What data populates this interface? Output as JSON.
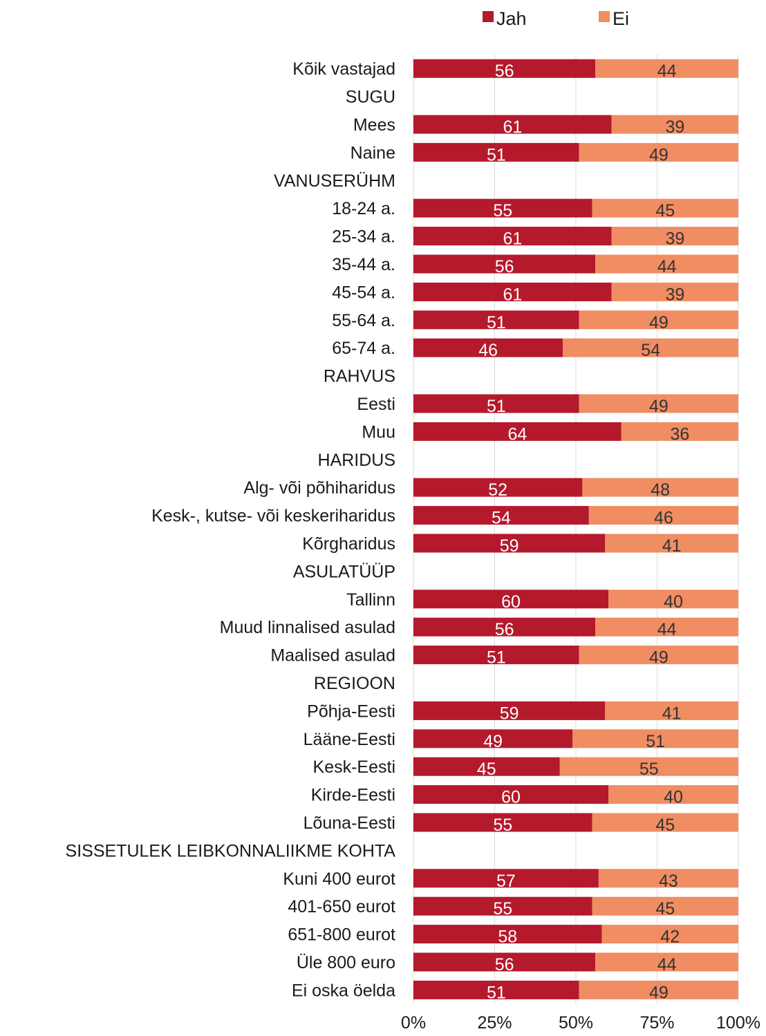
{
  "colors": {
    "jah": "#b5192c",
    "ei": "#f08d63"
  },
  "chart_data": {
    "type": "bar",
    "orientation": "horizontal",
    "stacked": true,
    "legend_position": "top",
    "xlim": [
      0,
      100
    ],
    "xticks": [
      "0%",
      "25%",
      "50%",
      "75%",
      "100%"
    ],
    "grid": true,
    "series": [
      {
        "name": "Jah",
        "color": "#b5192c"
      },
      {
        "name": "Ei",
        "color": "#f08d63"
      }
    ],
    "rows": [
      {
        "label": "Kõik vastajad",
        "jah": 56,
        "ei": 44
      },
      {
        "label": "SUGU",
        "jah": null,
        "ei": null
      },
      {
        "label": "Mees",
        "jah": 61,
        "ei": 39
      },
      {
        "label": "Naine",
        "jah": 51,
        "ei": 49
      },
      {
        "label": "VANUSERÜHM",
        "jah": null,
        "ei": null
      },
      {
        "label": "18-24 a.",
        "jah": 55,
        "ei": 45
      },
      {
        "label": "25-34 a.",
        "jah": 61,
        "ei": 39
      },
      {
        "label": "35-44 a.",
        "jah": 56,
        "ei": 44
      },
      {
        "label": "45-54 a.",
        "jah": 61,
        "ei": 39
      },
      {
        "label": "55-64 a.",
        "jah": 51,
        "ei": 49
      },
      {
        "label": "65-74 a.",
        "jah": 46,
        "ei": 54
      },
      {
        "label": "RAHVUS",
        "jah": null,
        "ei": null
      },
      {
        "label": "Eesti",
        "jah": 51,
        "ei": 49
      },
      {
        "label": "Muu",
        "jah": 64,
        "ei": 36
      },
      {
        "label": "HARIDUS",
        "jah": null,
        "ei": null
      },
      {
        "label": "Alg- või põhiharidus",
        "jah": 52,
        "ei": 48
      },
      {
        "label": "Kesk-, kutse- või keskeriharidus",
        "jah": 54,
        "ei": 46
      },
      {
        "label": "Kõrgharidus",
        "jah": 59,
        "ei": 41
      },
      {
        "label": "ASULATÜÜP",
        "jah": null,
        "ei": null
      },
      {
        "label": "Tallinn",
        "jah": 60,
        "ei": 40
      },
      {
        "label": "Muud linnalised asulad",
        "jah": 56,
        "ei": 44
      },
      {
        "label": "Maalised asulad",
        "jah": 51,
        "ei": 49
      },
      {
        "label": "REGIOON",
        "jah": null,
        "ei": null
      },
      {
        "label": "Põhja-Eesti",
        "jah": 59,
        "ei": 41
      },
      {
        "label": "Lääne-Eesti",
        "jah": 49,
        "ei": 51
      },
      {
        "label": "Kesk-Eesti",
        "jah": 45,
        "ei": 55
      },
      {
        "label": "Kirde-Eesti",
        "jah": 60,
        "ei": 40
      },
      {
        "label": "Lõuna-Eesti",
        "jah": 55,
        "ei": 45
      },
      {
        "label": "SISSETULEK LEIBKONNALIIKME KOHTA",
        "jah": null,
        "ei": null
      },
      {
        "label": "Kuni 400 eurot",
        "jah": 57,
        "ei": 43
      },
      {
        "label": "401-650 eurot",
        "jah": 55,
        "ei": 45
      },
      {
        "label": "651-800 eurot",
        "jah": 58,
        "ei": 42
      },
      {
        "label": "Üle 800 euro",
        "jah": 56,
        "ei": 44
      },
      {
        "label": "Ei oska öelda",
        "jah": 51,
        "ei": 49
      }
    ]
  }
}
